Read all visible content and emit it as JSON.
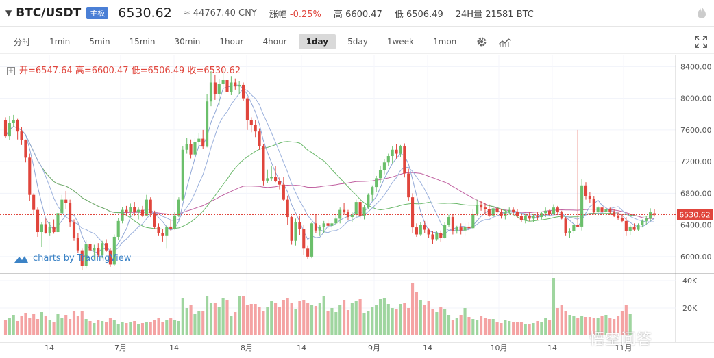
{
  "header": {
    "symbol": "BTC/USDT",
    "badge": "主板",
    "price": "6530.62",
    "cny": "≈ 44767.40 CNY",
    "change_label": "涨幅",
    "change_value": "-0.25%",
    "high_label": "高",
    "high_value": "6600.47",
    "low_label": "低",
    "low_value": "6506.49",
    "volume_label": "24H量",
    "volume_value": "21581 BTC"
  },
  "toolbar": {
    "timeframes": [
      "分时",
      "1min",
      "5min",
      "15min",
      "30min",
      "1hour",
      "4hour",
      "1day",
      "5day",
      "1week",
      "1mon"
    ],
    "active": "1day"
  },
  "ohlc": {
    "open_label": "开=",
    "open": "6547.64",
    "high_label": "高=",
    "high": "6600.47",
    "low_label": "低=",
    "low": "6506.49",
    "close_label": "收=",
    "close": "6530.62"
  },
  "branding": {
    "tradingview": "charts by TradingView",
    "watermark": "悟空问答"
  },
  "colors": {
    "up": "#6bbf6b",
    "down": "#e0453c",
    "up_vol": "#9fd59f",
    "down_vol": "#f4a3a3",
    "ma_pink": "#c060a0",
    "ma_green": "#6ab86a",
    "ma_blue": "#9ab0dc",
    "badge": "#4a7fd6"
  },
  "chart_data": {
    "type": "candlestick",
    "price_axis": {
      "ticks": [
        6000,
        6400,
        6800,
        7200,
        7600,
        8000,
        8400
      ],
      "tick_labels": [
        "6000.00",
        "6400.00",
        "6800.00",
        "7200.00",
        "7600.00",
        "8000.00",
        "8400.00"
      ],
      "range": [
        5800,
        8550
      ]
    },
    "volume_axis": {
      "ticks": [
        20000,
        40000
      ],
      "tick_labels": [
        "20K",
        "40K"
      ],
      "range": [
        0,
        42000
      ]
    },
    "x_labels": [
      "14",
      "7月",
      "14",
      "8月",
      "14",
      "9月",
      "14",
      "10月",
      "14",
      "11月"
    ],
    "last_price": "6530.62",
    "candles": [
      [
        7720,
        7760,
        7500,
        7520
      ],
      [
        7520,
        7780,
        7470,
        7690
      ],
      [
        7690,
        7790,
        7640,
        7720
      ],
      [
        7720,
        7740,
        7480,
        7580
      ],
      [
        7580,
        7640,
        7410,
        7470
      ],
      [
        7470,
        7480,
        7190,
        7250
      ],
      [
        7250,
        7300,
        6700,
        6780
      ],
      [
        6780,
        6800,
        6530,
        6590
      ],
      [
        6590,
        6620,
        6250,
        6310
      ],
      [
        6310,
        6440,
        6120,
        6410
      ],
      [
        6410,
        6480,
        6290,
        6300
      ],
      [
        6300,
        6440,
        6260,
        6380
      ],
      [
        6380,
        6470,
        6290,
        6310
      ],
      [
        6310,
        6600,
        6300,
        6550
      ],
      [
        6550,
        6780,
        6500,
        6720
      ],
      [
        6720,
        6830,
        6600,
        6680
      ],
      [
        6680,
        6720,
        6380,
        6430
      ],
      [
        6430,
        6470,
        6200,
        6240
      ],
      [
        6240,
        6300,
        6050,
        6080
      ],
      [
        6080,
        6100,
        5830,
        5880
      ],
      [
        5880,
        6210,
        5850,
        6160
      ],
      [
        6160,
        6200,
        6050,
        6080
      ],
      [
        6080,
        6150,
        5970,
        6110
      ],
      [
        6110,
        6170,
        5990,
        6020
      ],
      [
        6020,
        6200,
        5980,
        6170
      ],
      [
        6170,
        6220,
        6060,
        6080
      ],
      [
        6080,
        6110,
        5870,
        5900
      ],
      [
        5900,
        6280,
        5880,
        6250
      ],
      [
        6250,
        6490,
        6210,
        6450
      ],
      [
        6450,
        6630,
        6420,
        6590
      ],
      [
        6590,
        6640,
        6520,
        6570
      ],
      [
        6570,
        6670,
        6500,
        6630
      ],
      [
        6630,
        6690,
        6520,
        6560
      ],
      [
        6560,
        6620,
        6470,
        6590
      ],
      [
        6590,
        6640,
        6500,
        6520
      ],
      [
        6520,
        6780,
        6510,
        6720
      ],
      [
        6720,
        6750,
        6500,
        6550
      ],
      [
        6550,
        6580,
        6350,
        6380
      ],
      [
        6380,
        6420,
        6260,
        6300
      ],
      [
        6300,
        6350,
        6190,
        6260
      ],
      [
        6260,
        6400,
        6100,
        6380
      ],
      [
        6380,
        6470,
        6330,
        6350
      ],
      [
        6350,
        6560,
        6340,
        6520
      ],
      [
        6520,
        6750,
        6500,
        6720
      ],
      [
        6720,
        7400,
        6700,
        7350
      ],
      [
        7350,
        7500,
        7300,
        7420
      ],
      [
        7420,
        7480,
        7240,
        7290
      ],
      [
        7290,
        7500,
        7270,
        7450
      ],
      [
        7450,
        7560,
        7400,
        7490
      ],
      [
        7490,
        7600,
        7360,
        7390
      ],
      [
        7390,
        8050,
        7380,
        7960
      ],
      [
        7960,
        8350,
        7900,
        8200
      ],
      [
        8200,
        8300,
        7980,
        8050
      ],
      [
        8050,
        8240,
        7920,
        8180
      ],
      [
        8180,
        8370,
        8140,
        8230
      ],
      [
        8230,
        8300,
        7950,
        8080
      ],
      [
        8080,
        8280,
        8040,
        8200
      ],
      [
        8200,
        8250,
        8110,
        8150
      ],
      [
        8150,
        8220,
        8050,
        8170
      ],
      [
        8170,
        8200,
        7970,
        8000
      ],
      [
        8000,
        8020,
        7600,
        7720
      ],
      [
        7720,
        7760,
        7570,
        7660
      ],
      [
        7660,
        7720,
        7510,
        7580
      ],
      [
        7580,
        7620,
        7350,
        7400
      ],
      [
        7400,
        7420,
        6900,
        6960
      ],
      [
        6960,
        7100,
        6930,
        6990
      ],
      [
        6990,
        7150,
        6950,
        7010
      ],
      [
        7010,
        7140,
        6940,
        6950
      ],
      [
        6950,
        7000,
        6850,
        6910
      ],
      [
        6910,
        7010,
        6700,
        6720
      ],
      [
        6720,
        6770,
        6400,
        6500
      ],
      [
        6500,
        6520,
        6150,
        6200
      ],
      [
        6200,
        6480,
        6140,
        6440
      ],
      [
        6440,
        6520,
        6270,
        6350
      ],
      [
        6350,
        6400,
        6020,
        6100
      ],
      [
        6100,
        6140,
        5970,
        6000
      ],
      [
        6000,
        6440,
        5980,
        6420
      ],
      [
        6420,
        6530,
        6300,
        6330
      ],
      [
        6330,
        6400,
        6260,
        6380
      ],
      [
        6380,
        6450,
        6300,
        6420
      ],
      [
        6420,
        6470,
        6350,
        6390
      ],
      [
        6390,
        6440,
        6310,
        6420
      ],
      [
        6420,
        6530,
        6400,
        6480
      ],
      [
        6480,
        6620,
        6420,
        6590
      ],
      [
        6590,
        6680,
        6530,
        6560
      ],
      [
        6560,
        6590,
        6460,
        6500
      ],
      [
        6500,
        6560,
        6440,
        6530
      ],
      [
        6530,
        6720,
        6500,
        6690
      ],
      [
        6690,
        6730,
        6480,
        6510
      ],
      [
        6510,
        6650,
        6470,
        6620
      ],
      [
        6620,
        6800,
        6600,
        6780
      ],
      [
        6780,
        6900,
        6700,
        6880
      ],
      [
        6880,
        7020,
        6820,
        6990
      ],
      [
        6990,
        7150,
        6930,
        7090
      ],
      [
        7090,
        7230,
        7040,
        7190
      ],
      [
        7190,
        7300,
        7150,
        7270
      ],
      [
        7270,
        7400,
        7180,
        7350
      ],
      [
        7350,
        7420,
        7240,
        7300
      ],
      [
        7300,
        7410,
        7260,
        7400
      ],
      [
        7400,
        7430,
        7000,
        7050
      ],
      [
        7050,
        7110,
        6700,
        6750
      ],
      [
        6750,
        6800,
        6300,
        6370
      ],
      [
        6370,
        6420,
        6250,
        6280
      ],
      [
        6280,
        6440,
        6260,
        6400
      ],
      [
        6400,
        6450,
        6300,
        6340
      ],
      [
        6340,
        6360,
        6240,
        6280
      ],
      [
        6280,
        6320,
        6160,
        6220
      ],
      [
        6220,
        6320,
        6200,
        6300
      ],
      [
        6300,
        6330,
        6190,
        6240
      ],
      [
        6240,
        6440,
        6230,
        6400
      ],
      [
        6400,
        6530,
        6380,
        6500
      ],
      [
        6500,
        6540,
        6280,
        6320
      ],
      [
        6320,
        6390,
        6290,
        6370
      ],
      [
        6370,
        6420,
        6280,
        6330
      ],
      [
        6330,
        6420,
        6260,
        6380
      ],
      [
        6380,
        6440,
        6330,
        6360
      ],
      [
        6360,
        6600,
        6350,
        6540
      ],
      [
        6540,
        6720,
        6520,
        6650
      ],
      [
        6650,
        6700,
        6580,
        6620
      ],
      [
        6620,
        6680,
        6540,
        6600
      ],
      [
        6600,
        6660,
        6500,
        6520
      ],
      [
        6520,
        6640,
        6500,
        6610
      ],
      [
        6610,
        6630,
        6520,
        6560
      ],
      [
        6560,
        6600,
        6480,
        6510
      ],
      [
        6510,
        6590,
        6470,
        6560
      ],
      [
        6560,
        6620,
        6530,
        6590
      ],
      [
        6590,
        6620,
        6530,
        6570
      ],
      [
        6570,
        6600,
        6490,
        6510
      ],
      [
        6510,
        6550,
        6440,
        6460
      ],
      [
        6460,
        6540,
        6420,
        6520
      ],
      [
        6520,
        6560,
        6450,
        6480
      ],
      [
        6480,
        6540,
        6440,
        6510
      ],
      [
        6510,
        6560,
        6460,
        6500
      ],
      [
        6500,
        6570,
        6470,
        6550
      ],
      [
        6550,
        6620,
        6500,
        6580
      ],
      [
        6580,
        6600,
        6520,
        6540
      ],
      [
        6540,
        6660,
        6530,
        6620
      ],
      [
        6620,
        6640,
        6540,
        6560
      ],
      [
        6560,
        6580,
        6470,
        6480
      ],
      [
        6480,
        6500,
        6260,
        6300
      ],
      [
        6300,
        6360,
        6240,
        6320
      ],
      [
        6320,
        6420,
        6290,
        6400
      ],
      [
        6400,
        7600,
        6380,
        6380
      ],
      [
        6380,
        6980,
        6330,
        6900
      ],
      [
        6900,
        6940,
        6720,
        6760
      ],
      [
        6760,
        6820,
        6680,
        6730
      ],
      [
        6730,
        6760,
        6530,
        6560
      ],
      [
        6560,
        6640,
        6520,
        6620
      ],
      [
        6620,
        6650,
        6530,
        6570
      ],
      [
        6570,
        6620,
        6510,
        6600
      ],
      [
        6600,
        6620,
        6530,
        6560
      ],
      [
        6560,
        6600,
        6500,
        6520
      ],
      [
        6520,
        6560,
        6460,
        6490
      ],
      [
        6490,
        6540,
        6430,
        6450
      ],
      [
        6450,
        6500,
        6260,
        6320
      ],
      [
        6320,
        6400,
        6270,
        6380
      ],
      [
        6380,
        6420,
        6320,
        6340
      ],
      [
        6340,
        6420,
        6320,
        6400
      ],
      [
        6400,
        6470,
        6370,
        6450
      ],
      [
        6450,
        6510,
        6400,
        6480
      ],
      [
        6480,
        6610,
        6450,
        6560
      ],
      [
        6547.64,
        6600.47,
        6506.49,
        6530.62
      ]
    ],
    "volumes": [
      11000,
      12500,
      15000,
      10500,
      14000,
      16500,
      13000,
      15500,
      12000,
      17000,
      14000,
      11000,
      10000,
      15500,
      13000,
      15000,
      12000,
      18000,
      14000,
      17500,
      12000,
      10500,
      9000,
      11000,
      10500,
      9500,
      13000,
      11500,
      8500,
      10000,
      9000,
      9500,
      10500,
      8500,
      9000,
      10000,
      9500,
      11000,
      12500,
      10000,
      11500,
      12500,
      11000,
      10500,
      27000,
      20000,
      22500,
      15500,
      17500,
      17500,
      29000,
      23500,
      24000,
      21000,
      27000,
      26000,
      14000,
      17000,
      29000,
      29000,
      22000,
      23000,
      23000,
      21000,
      18000,
      21000,
      25500,
      23500,
      21000,
      26000,
      27000,
      24000,
      19000,
      25000,
      26000,
      24000,
      22000,
      21500,
      24000,
      28500,
      18000,
      20000,
      17000,
      22000,
      26000,
      18500,
      24000,
      25500,
      26500,
      16500,
      18000,
      21000,
      22000,
      26500,
      27000,
      23000,
      20000,
      19000,
      23000,
      24000,
      20000,
      38000,
      32000,
      26000,
      22500,
      25000,
      19000,
      17000,
      21000,
      19000,
      15000,
      11000,
      13000,
      15000,
      20000,
      13500,
      12000,
      11000,
      14000,
      13000,
      12000,
      12000,
      10000,
      9000,
      11000,
      10500,
      10000,
      9500,
      10000,
      8500,
      8000,
      9000,
      10500,
      10000,
      13000,
      11000,
      42000,
      20000,
      22000,
      18000,
      15000,
      14000,
      13000,
      14000,
      13500,
      13500,
      13000,
      12500,
      14000,
      15000,
      13000,
      12000,
      14000,
      18000,
      22500,
      16000
    ]
  }
}
